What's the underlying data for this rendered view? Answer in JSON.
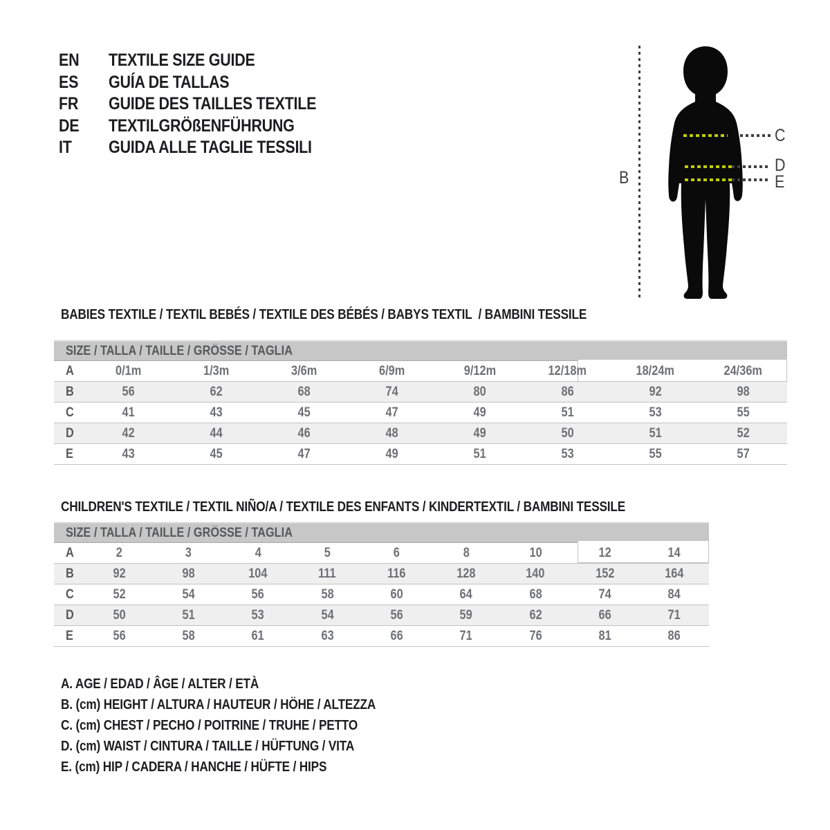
{
  "languages": [
    {
      "code": "EN",
      "label": "TEXTILE SIZE GUIDE"
    },
    {
      "code": "ES",
      "label": "GUÍA DE TALLAS"
    },
    {
      "code": "FR",
      "label": "GUIDE DES TAILLES TEXTILE"
    },
    {
      "code": "DE",
      "label": "TEXTILGRÖßENFÜHRUNG"
    },
    {
      "code": "IT",
      "label": "GUIDA ALLE TAGLIE TESSILI"
    }
  ],
  "figure": {
    "labels": {
      "height": "B",
      "chest": "C",
      "waist": "D",
      "hip": "E"
    },
    "colors": {
      "silhouette": "#0a0a0a",
      "measure_dash": "#bccf00",
      "guide_dash": "#3e3e3f"
    }
  },
  "babies_table": {
    "title": "BABIES TEXTILE / TEXTIL BEBÉS / TEXTILE DES BÉBÉS / BABYS TEXTIL  / BAMBINI TESSILE",
    "header": "SIZE / TALLA / TAILLE / GRÖSSE / TAGLIA",
    "rows": [
      {
        "label": "A",
        "values": [
          "0/1m",
          "1/3m",
          "3/6m",
          "6/9m",
          "9/12m",
          "12/18m",
          "18/24m",
          "24/36m"
        ]
      },
      {
        "label": "B",
        "values": [
          "56",
          "62",
          "68",
          "74",
          "80",
          "86",
          "92",
          "98"
        ]
      },
      {
        "label": "C",
        "values": [
          "41",
          "43",
          "45",
          "47",
          "49",
          "51",
          "53",
          "55"
        ]
      },
      {
        "label": "D",
        "values": [
          "42",
          "44",
          "46",
          "48",
          "49",
          "50",
          "51",
          "52"
        ]
      },
      {
        "label": "E",
        "values": [
          "43",
          "45",
          "47",
          "49",
          "51",
          "53",
          "55",
          "57"
        ]
      }
    ]
  },
  "children_table": {
    "title": "CHILDREN'S TEXTILE / TEXTIL NIÑO/A / TEXTILE DES ENFANTS / KINDERTEXTIL / BAMBINI TESSILE",
    "header": "SIZE / TALLA / TAILLE / GRÖSSE / TAGLIA",
    "rows": [
      {
        "label": "A",
        "values": [
          "2",
          "3",
          "4",
          "5",
          "6",
          "8",
          "10",
          "12",
          "14"
        ]
      },
      {
        "label": "B",
        "values": [
          "92",
          "98",
          "104",
          "111",
          "116",
          "128",
          "140",
          "152",
          "164"
        ]
      },
      {
        "label": "C",
        "values": [
          "52",
          "54",
          "56",
          "58",
          "60",
          "64",
          "68",
          "74",
          "84"
        ]
      },
      {
        "label": "D",
        "values": [
          "50",
          "51",
          "53",
          "54",
          "56",
          "59",
          "62",
          "66",
          "71"
        ]
      },
      {
        "label": "E",
        "values": [
          "56",
          "58",
          "61",
          "63",
          "66",
          "71",
          "76",
          "81",
          "86"
        ]
      }
    ]
  },
  "legend": [
    {
      "text": "A. AGE / EDAD / ÂGE / ALTER / ETÀ"
    },
    {
      "text": "B. (cm) HEIGHT / ALTURA / HAUTEUR / HÖHE / ALTEZZA"
    },
    {
      "text": "C. (cm) CHEST / PECHO / POITRINE / TRUHE / PETTO"
    },
    {
      "text": "D. (cm) WAIST / CINTURA / TAILLE / HÜFTUNG / VITA"
    },
    {
      "text": "E. (cm) HIP / CADERA / HANCHE / HÜFTE / HIPS"
    }
  ],
  "colors": {
    "header_band": "#c7c7c7",
    "row_stripe": "#efefef",
    "row_line": "#c2c2c2",
    "text_dark": "#1d1d1f",
    "text_table": "#6f7073"
  }
}
